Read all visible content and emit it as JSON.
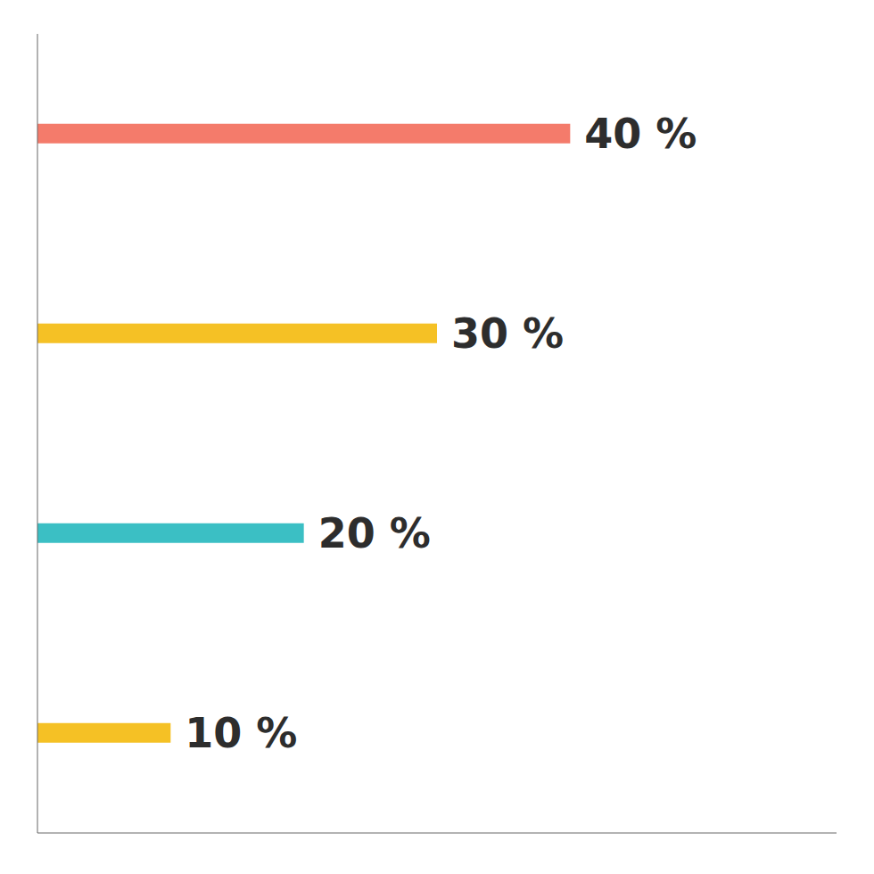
{
  "chart_data": {
    "type": "bar",
    "orientation": "horizontal",
    "categories": [
      null,
      null,
      null,
      null
    ],
    "values": [
      40,
      30,
      20,
      10
    ],
    "value_labels": [
      "40 %",
      "30 %",
      "20 %",
      "10 %"
    ],
    "data_labels": true,
    "colors": [
      "#F47B6B",
      "#F5C125",
      "#3BBFC4",
      "#F5C125"
    ],
    "xlim": [
      0,
      60
    ],
    "tick_labels": false,
    "grid": false
  }
}
